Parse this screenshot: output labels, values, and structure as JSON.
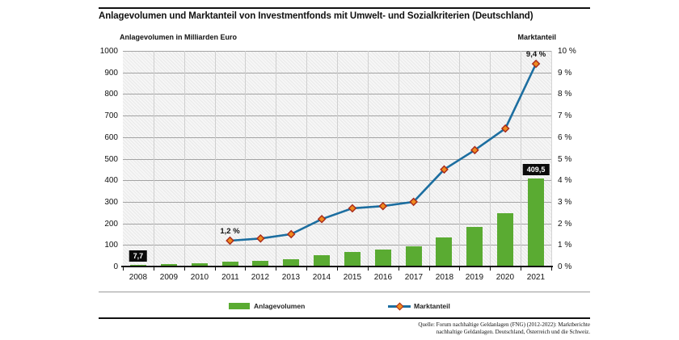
{
  "title": "Anlagevolumen und Marktanteil von Investmentfonds mit Umwelt- und Sozialkriterien (Deutschland)",
  "axes": {
    "left_title": "Anlagevolumen in Milliarden Euro",
    "right_title": "Marktanteil",
    "left_ticks": [
      "0",
      "100",
      "200",
      "300",
      "400",
      "500",
      "600",
      "700",
      "800",
      "900",
      "1000"
    ],
    "right_ticks": [
      "0 %",
      "1 %",
      "2 %",
      "3 %",
      "4 %",
      "5 %",
      "6 %",
      "7 %",
      "8 %",
      "9 %",
      "10 %"
    ]
  },
  "legend": [
    {
      "label": "Anlagevolumen"
    },
    {
      "label": "Marktanteil"
    }
  ],
  "annotations": [
    {
      "text": "7,7",
      "style": "box",
      "year": "2008",
      "series": "bar"
    },
    {
      "text": "1,2 %",
      "style": "plain",
      "year": "2011",
      "series": "line"
    },
    {
      "text": "9,4 %",
      "style": "plain",
      "year": "2021",
      "series": "line"
    },
    {
      "text": "409,5",
      "style": "box",
      "year": "2021",
      "series": "bar"
    }
  ],
  "source": {
    "line1": "Quelle: Forum nachhaltige Geldanlagen (FNG) (2012-2022): Marktberichte",
    "line2": "nachhaltige Geldanlagen. Deutschland, Österreich und die Schweiz."
  },
  "colors": {
    "bar": "#5aab32",
    "line": "#1c6ea0",
    "marker_fill": "#ef8b1e",
    "marker_stroke": "#a8281a",
    "grid_h": "#a3a3a3",
    "grid_v": "#cfcfcf",
    "axis": "#111111"
  },
  "chart_data": {
    "type": "bar+line",
    "categories": [
      "2008",
      "2009",
      "2010",
      "2011",
      "2012",
      "2013",
      "2014",
      "2015",
      "2016",
      "2017",
      "2018",
      "2019",
      "2020",
      "2021"
    ],
    "series": [
      {
        "name": "Anlagevolumen",
        "type": "bar",
        "unit": "Milliarden Euro",
        "axis": "left",
        "values": [
          7.7,
          13,
          16,
          21,
          28,
          33,
          52,
          69,
          80,
          92,
          133,
          183,
          248,
          409.5
        ]
      },
      {
        "name": "Marktanteil",
        "type": "line",
        "unit": "%",
        "axis": "right",
        "values": [
          null,
          null,
          null,
          1.2,
          1.3,
          1.5,
          2.2,
          2.7,
          2.8,
          3.0,
          4.5,
          5.4,
          6.4,
          9.4
        ]
      }
    ],
    "left_ylim": [
      0,
      1000
    ],
    "right_ylim": [
      0,
      10
    ],
    "grid": true,
    "legend_position": "bottom"
  }
}
